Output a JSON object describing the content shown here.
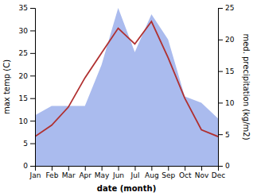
{
  "chart_data": {
    "type": "line",
    "xlabel": "date (month)",
    "ylabel": "max temp (C)",
    "y2label": "med. precipitation (kg/m2)",
    "categories": [
      "Jan",
      "Feb",
      "Mar",
      "Apr",
      "May",
      "Jun",
      "Jul",
      "Aug",
      "Sep",
      "Oct",
      "Nov",
      "Dec"
    ],
    "series": [
      {
        "type": "area",
        "axis": "y2",
        "color": "#aabbee",
        "values": [
          8.0,
          9.5,
          9.5,
          9.5,
          16.0,
          25.0,
          18.0,
          24.0,
          20.0,
          11.0,
          10.0,
          7.5
        ]
      },
      {
        "type": "line",
        "color": "#b03030",
        "values": [
          6.5,
          9.0,
          13.0,
          19.5,
          25.0,
          30.5,
          27.0,
          32.0,
          24.0,
          15.0,
          8.0,
          6.5
        ]
      }
    ],
    "ylim": [
      0,
      35
    ],
    "yticks": [
      0,
      5,
      10,
      15,
      20,
      25,
      30,
      35
    ],
    "y2lim": [
      0,
      25
    ],
    "y2ticks": [
      0,
      5,
      10,
      15,
      20,
      25
    ]
  }
}
